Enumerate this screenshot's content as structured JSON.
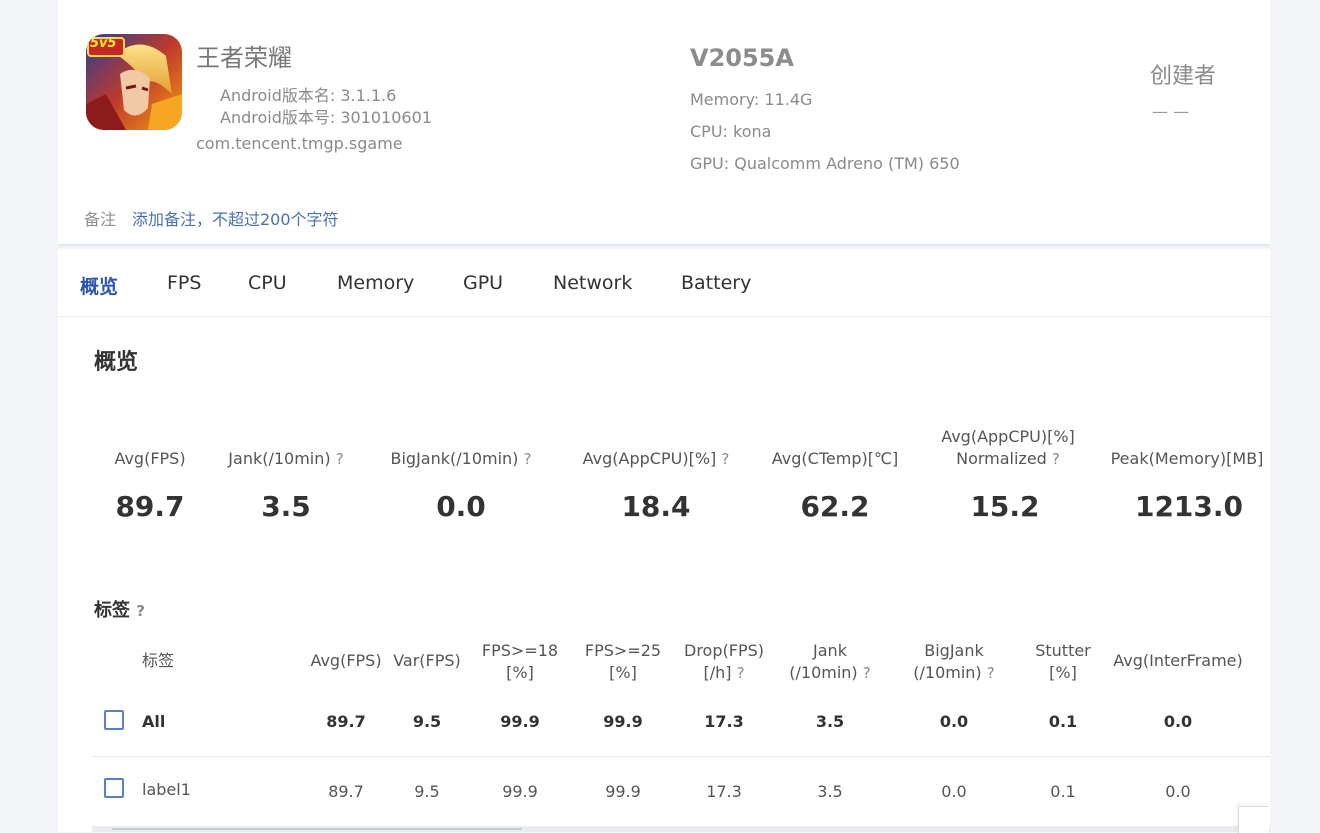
{
  "app": {
    "name": "王者荣耀",
    "icon_badge": "5v5",
    "version_name": "Android版本名: 3.1.1.6",
    "version_code": "Android版本号: 301010601",
    "package": "com.tencent.tmgp.sgame"
  },
  "device": {
    "name": "V2055A",
    "memory": "Memory: 11.4G",
    "cpu": "CPU: kona",
    "gpu": "GPU: Qualcomm Adreno (TM) 650"
  },
  "creator": {
    "label": "创建者",
    "value": "— —"
  },
  "notes": {
    "label": "备注",
    "placeholder": "添加备注，不超过200个字符"
  },
  "tabs": [
    "概览",
    "FPS",
    "CPU",
    "Memory",
    "GPU",
    "Network",
    "Battery"
  ],
  "section_title": "概览",
  "stats": [
    {
      "label": "Avg(FPS)",
      "value": "89.7"
    },
    {
      "label": "Jank(/10min)",
      "value": "3.5"
    },
    {
      "label": "BigJank(/10min)",
      "value": "0.0"
    },
    {
      "label": "Avg(AppCPU)[%]",
      "value": "18.4"
    },
    {
      "label": "Avg(CTemp)[℃]",
      "value": "62.2"
    },
    {
      "label": "Avg(AppCPU)[%]",
      "label2": "Normalized",
      "value": "15.2"
    },
    {
      "label": "Peak(Memory)[MB]",
      "value": "1213.0"
    }
  ],
  "qmark": "?",
  "tags": {
    "title": "标签",
    "columns": [
      {
        "l1": "标签"
      },
      {
        "l1": "Avg(FPS)"
      },
      {
        "l1": "Var(FPS)"
      },
      {
        "l1": "FPS>=18",
        "l2": "[%]"
      },
      {
        "l1": "FPS>=25",
        "l2": "[%]"
      },
      {
        "l1": "Drop(FPS)",
        "l2": "[/h]"
      },
      {
        "l1": "Jank",
        "l2": "(/10min)"
      },
      {
        "l1": "BigJank",
        "l2": "(/10min)"
      },
      {
        "l1": "Stutter",
        "l2": "[%]"
      },
      {
        "l1": "Avg(InterFrame)"
      }
    ],
    "rows": [
      {
        "name": "All",
        "values": [
          "89.7",
          "9.5",
          "99.9",
          "99.9",
          "17.3",
          "3.5",
          "0.0",
          "0.1",
          "0.0"
        ]
      },
      {
        "name": "label1",
        "values": [
          "89.7",
          "9.5",
          "99.9",
          "99.9",
          "17.3",
          "3.5",
          "0.0",
          "0.1",
          "0.0"
        ]
      }
    ]
  }
}
